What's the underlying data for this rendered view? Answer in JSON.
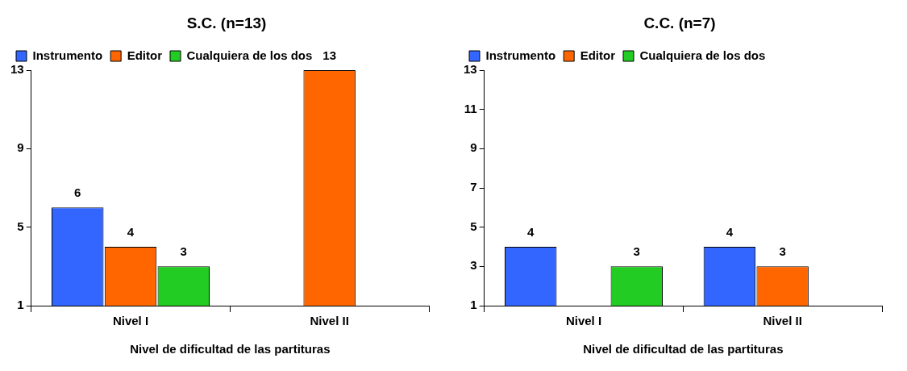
{
  "chart_data": [
    {
      "type": "bar",
      "title": "S.C. (n=13)",
      "xlabel": "Nivel de dificultad de las partituras",
      "categories": [
        "Nivel I",
        "Nivel II"
      ],
      "series": [
        {
          "name": "Instrumento",
          "color": "#3366ff",
          "values": [
            6,
            null
          ]
        },
        {
          "name": "Editor",
          "color": "#ff6600",
          "values": [
            4,
            13
          ]
        },
        {
          "name": "Cualquiera de los dos",
          "color": "#22cc22",
          "values": [
            3,
            null
          ]
        }
      ],
      "ylim": [
        1,
        13
      ],
      "yticks": [
        1,
        5,
        9,
        13
      ],
      "grid": false,
      "legend": "top",
      "data_labels": true
    },
    {
      "type": "bar",
      "title": "C.C. (n=7)",
      "xlabel": "Nivel de dificultad de las partituras",
      "categories": [
        "Nivel I",
        "Nivel II"
      ],
      "series": [
        {
          "name": "Instrumento",
          "color": "#3366ff",
          "values": [
            4,
            4
          ]
        },
        {
          "name": "Editor",
          "color": "#ff6600",
          "values": [
            null,
            3
          ]
        },
        {
          "name": "Cualquiera de los dos",
          "color": "#22cc22",
          "values": [
            3,
            null
          ]
        }
      ],
      "ylim": [
        1,
        13
      ],
      "yticks": [
        1,
        3,
        5,
        7,
        9,
        11,
        13
      ],
      "grid": false,
      "legend": "top",
      "data_labels": true
    }
  ]
}
